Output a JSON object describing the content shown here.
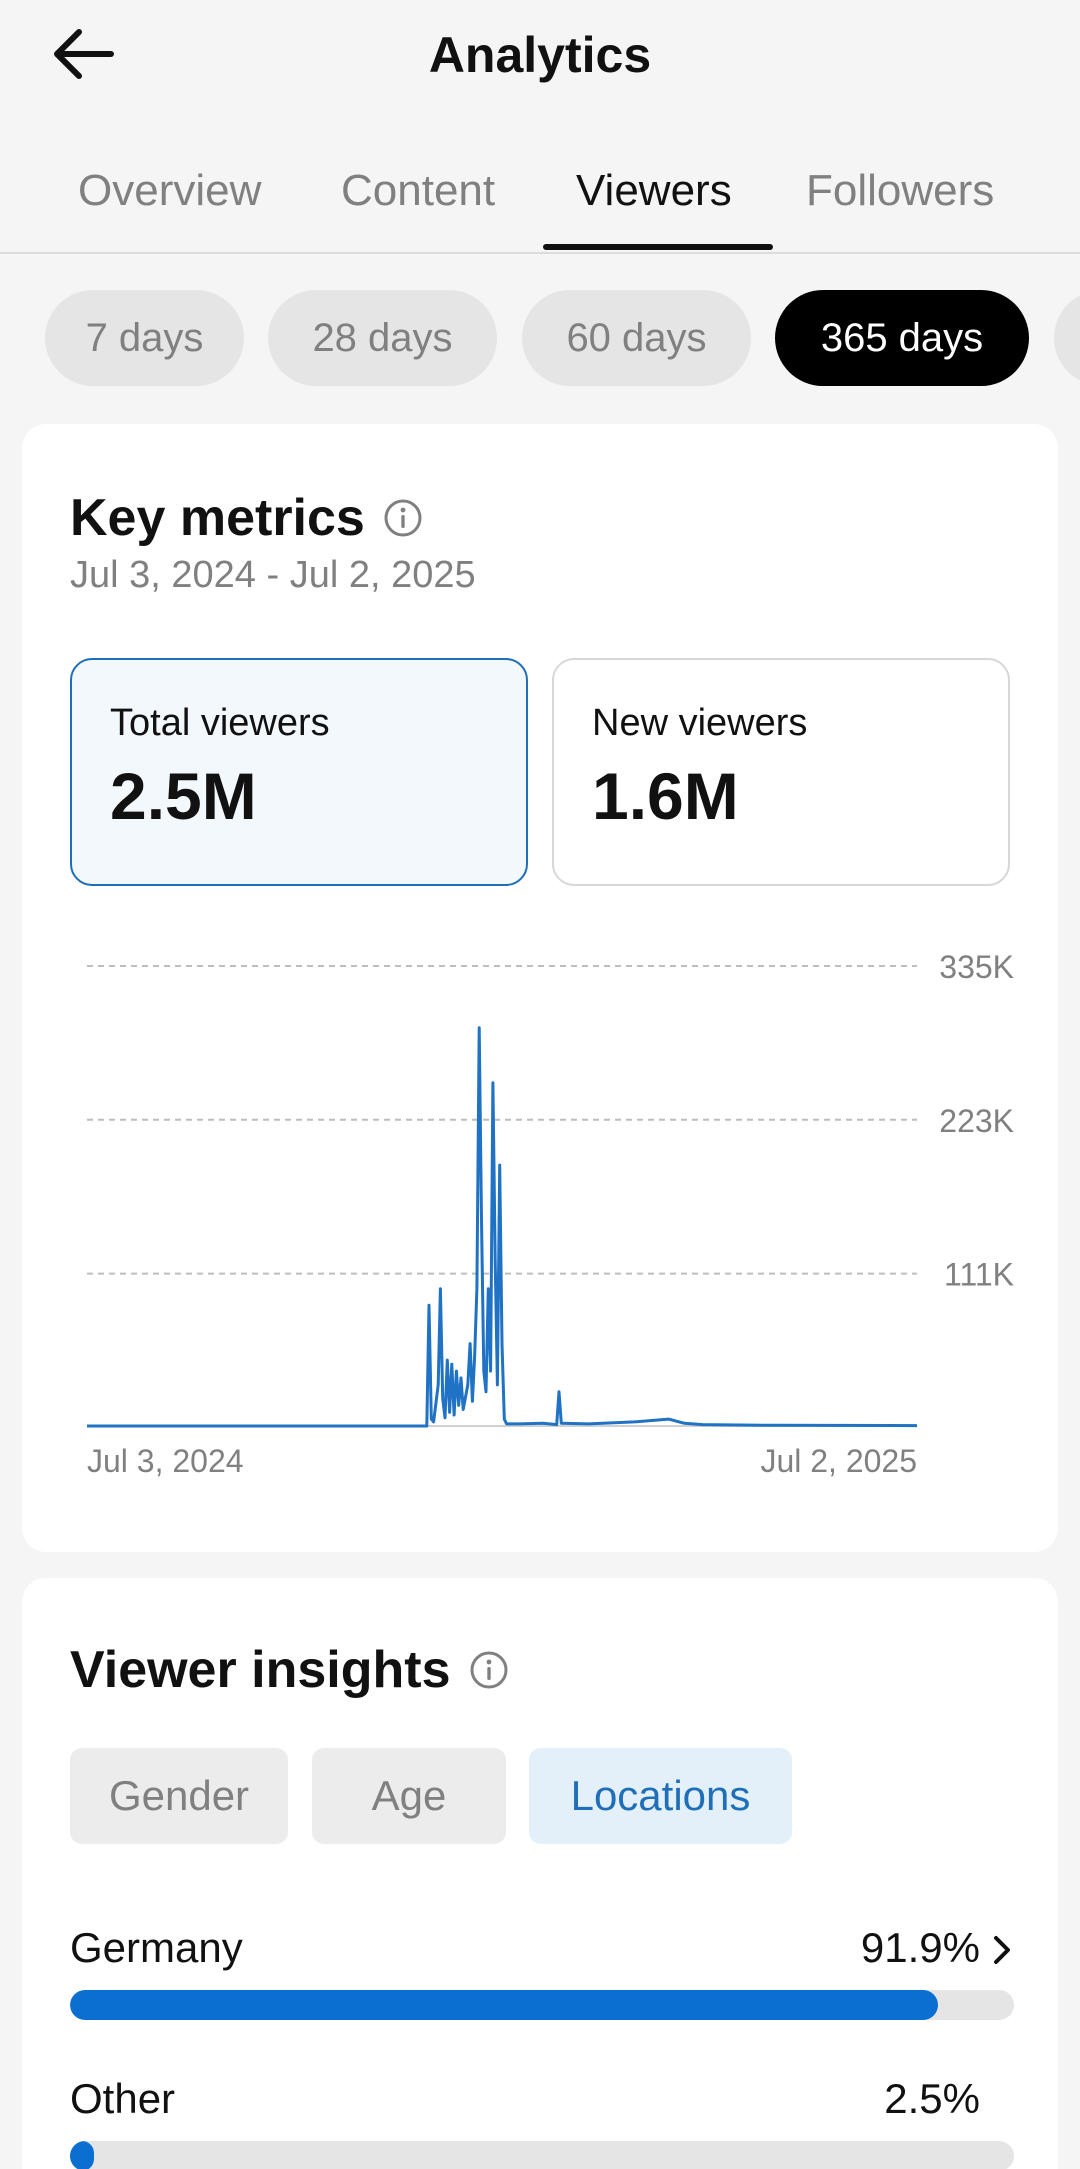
{
  "header": {
    "title": "Analytics",
    "back_icon": "arrow-left-icon"
  },
  "tabs": [
    {
      "label": "Overview",
      "active": false
    },
    {
      "label": "Content",
      "active": false
    },
    {
      "label": "Viewers",
      "active": true
    },
    {
      "label": "Followers",
      "active": false
    }
  ],
  "periods": [
    {
      "label": "7 days",
      "active": false
    },
    {
      "label": "28 days",
      "active": false
    },
    {
      "label": "60 days",
      "active": false
    },
    {
      "label": "365 days",
      "active": true
    }
  ],
  "key_metrics": {
    "title": "Key metrics",
    "info_icon": "info-icon",
    "date_range": "Jul 3, 2024 - Jul 2, 2025",
    "metrics": [
      {
        "label": "Total viewers",
        "value": "2.5M",
        "selected": true
      },
      {
        "label": "New viewers",
        "value": "1.6M",
        "selected": false
      }
    ]
  },
  "chart_data": {
    "type": "line",
    "title": "",
    "xlabel": "",
    "ylabel": "",
    "x_tick_labels": [
      "Jul 3, 2024",
      "Jul 2, 2025"
    ],
    "y_tick_labels": [
      "335K",
      "223K",
      "111K"
    ],
    "y_ticks": [
      335000,
      223000,
      111000
    ],
    "ylim": [
      0,
      335000
    ],
    "grid": true,
    "line_color": "#1f72c4",
    "series": [
      {
        "values": [
          [
            0,
            0
          ],
          [
            149,
            0
          ],
          [
            150,
            88000
          ],
          [
            151,
            5000
          ],
          [
            152,
            3000
          ],
          [
            154,
            30000
          ],
          [
            155,
            100000
          ],
          [
            156,
            20000
          ],
          [
            157,
            6000
          ],
          [
            158,
            48000
          ],
          [
            159,
            10000
          ],
          [
            160,
            45000
          ],
          [
            161,
            8000
          ],
          [
            162,
            40000
          ],
          [
            163,
            15000
          ],
          [
            164,
            35000
          ],
          [
            165,
            12000
          ],
          [
            167,
            30000
          ],
          [
            168,
            60000
          ],
          [
            169,
            18000
          ],
          [
            170,
            50000
          ],
          [
            171,
            100000
          ],
          [
            172,
            290000
          ],
          [
            173,
            150000
          ],
          [
            174,
            40000
          ],
          [
            175,
            25000
          ],
          [
            176,
            100000
          ],
          [
            177,
            40000
          ],
          [
            178,
            250000
          ],
          [
            179,
            120000
          ],
          [
            180,
            30000
          ],
          [
            181,
            190000
          ],
          [
            182,
            60000
          ],
          [
            183,
            5000
          ],
          [
            184,
            1500
          ],
          [
            190,
            1500
          ],
          [
            200,
            2000
          ],
          [
            206,
            1000
          ],
          [
            207,
            25000
          ],
          [
            208,
            2000
          ],
          [
            220,
            1500
          ],
          [
            240,
            3000
          ],
          [
            255,
            5000
          ],
          [
            262,
            2000
          ],
          [
            270,
            1000
          ],
          [
            300,
            500
          ],
          [
            364,
            300
          ]
        ]
      }
    ]
  },
  "viewer_insights": {
    "title": "Viewer insights",
    "info_icon": "info-icon",
    "tabs": [
      {
        "label": "Gender",
        "active": false
      },
      {
        "label": "Age",
        "active": false
      },
      {
        "label": "Locations",
        "active": true
      }
    ],
    "locations": [
      {
        "name": "Germany",
        "percent_label": "91.9%",
        "percent": 91.9,
        "has_chevron": true
      },
      {
        "name": "Other",
        "percent_label": "2.5%",
        "percent": 2.5,
        "has_chevron": false
      }
    ]
  },
  "colors": {
    "accent": "#0b6fd2",
    "selected_border": "#1f6fb8",
    "muted_text": "#808080"
  }
}
